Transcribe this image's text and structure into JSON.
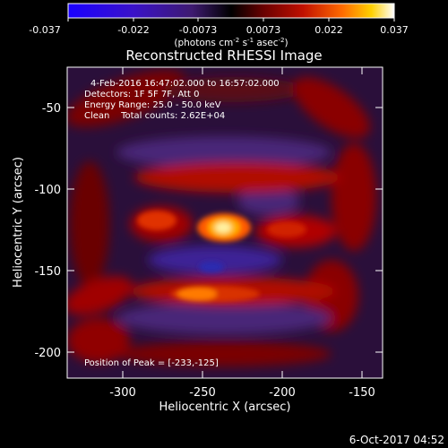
{
  "colorbar": {
    "tick_labels": [
      "-0.037",
      "-0.022",
      "-0.0073",
      "0.0073",
      "0.022",
      "0.037"
    ],
    "units_html_parts": [
      "(photons cm",
      "-2",
      " s",
      "-1",
      " asec",
      "-2",
      ")"
    ],
    "colors": [
      "#1a00ff",
      "#3a12c9",
      "#4b1e8f",
      "#3a1646",
      "#000000",
      "#5a0000",
      "#b00000",
      "#e03000",
      "#ff7a00",
      "#ffd000",
      "#ffffff"
    ]
  },
  "plot": {
    "title": "Reconstructed RHESSI Image",
    "xlabel": "Heliocentric X (arcsec)",
    "ylabel": "Heliocentric Y (arcsec)",
    "x_ticks": [
      "-300",
      "-250",
      "-200",
      "-150"
    ],
    "y_ticks": [
      "-50",
      "-100",
      "-150",
      "-200"
    ],
    "info_lines": [
      "4-Feb-2016 16:47:02.000 to 16:57:02.000",
      "Detectors: 1F 5F 7F, Att 0",
      "Energy Range: 25.0 - 50.0 keV",
      "Clean    Total counts: 2.62E+04"
    ],
    "peak_label": "Position of Peak = [-233,-125]"
  },
  "footer": {
    "timestamp": "6-Oct-2017 04:52"
  }
}
